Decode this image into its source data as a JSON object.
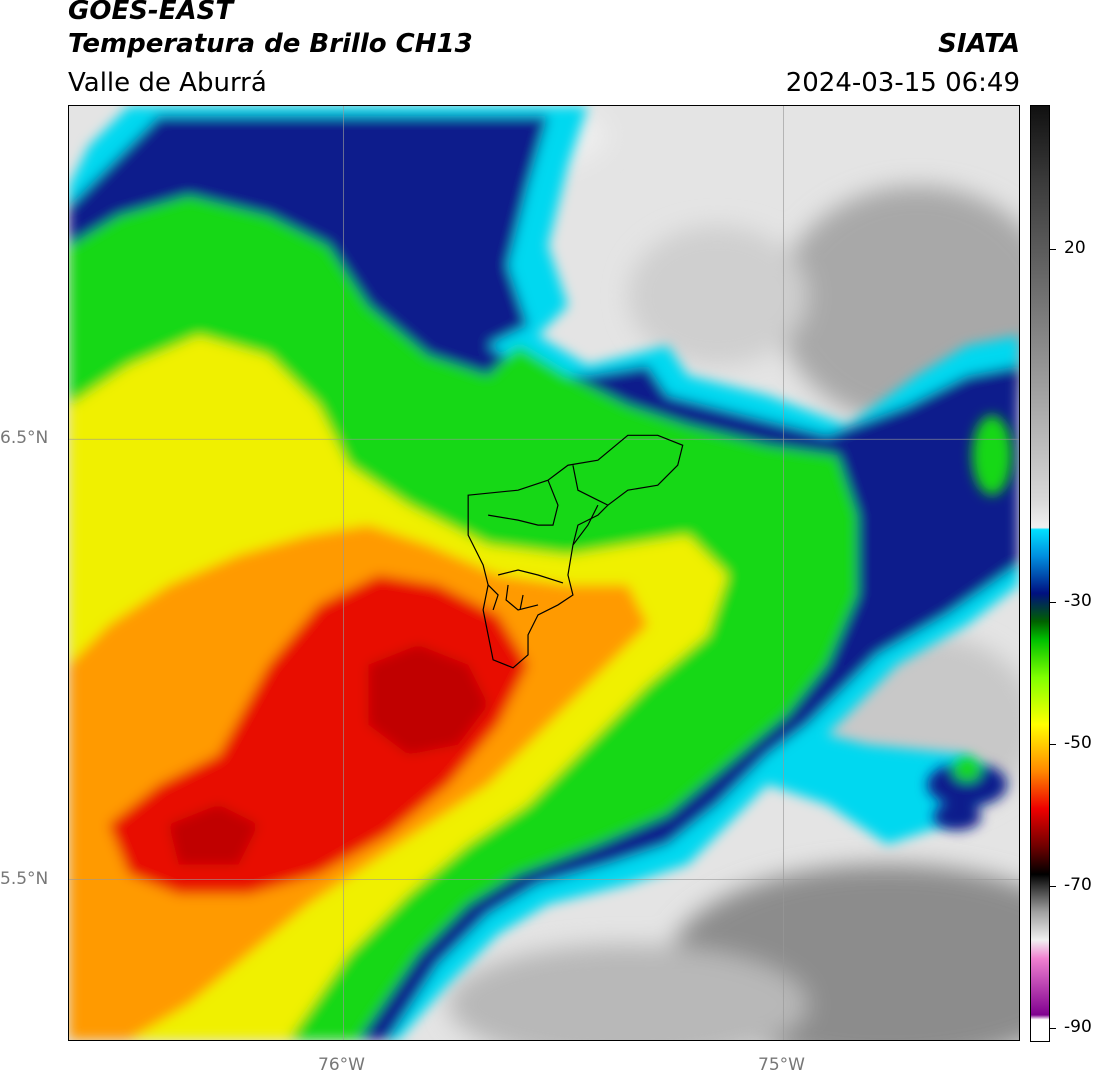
{
  "header": {
    "satellite": "GOES-EAST",
    "product": "Temperatura de Brillo CH13",
    "region": "Valle de Aburrá",
    "agency": "SIATA",
    "timestamp": "2024-03-15 06:49"
  },
  "map": {
    "lat_labels": [
      "6.5°N",
      "5.5°N"
    ],
    "lon_labels": [
      "76°W",
      "75°W"
    ]
  },
  "colorbar": {
    "ticks": [
      "20",
      "-30",
      "-50",
      "-70",
      "-90"
    ],
    "colors": {
      "magenta": "#b040b0",
      "pink": "#f0a0e0",
      "grey_dark": "#505050",
      "black": "#000000",
      "red": "#e00000",
      "orange": "#ff8c00",
      "yellow": "#ffff00",
      "green": "#00d000",
      "darkblue": "#001080",
      "cyan": "#00e0ff",
      "light": "#e8e8e8",
      "mid_grey": "#909090"
    }
  }
}
